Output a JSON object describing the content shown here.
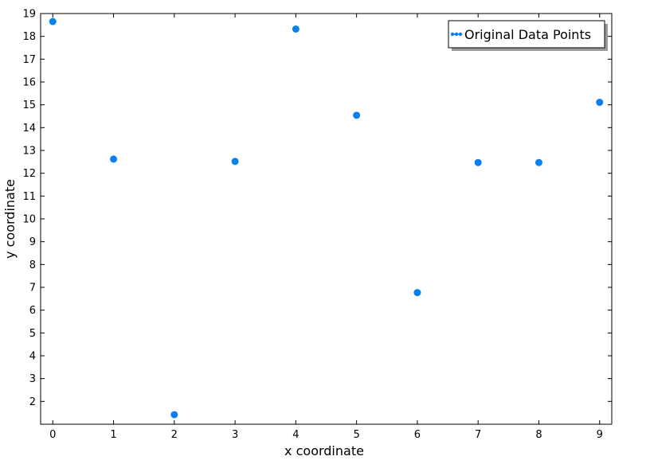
{
  "chart_data": {
    "type": "scatter",
    "title": "",
    "xlabel": "x coordinate",
    "ylabel": "y coordinate",
    "xlim": [
      -0.2,
      9.2
    ],
    "ylim": [
      1.0,
      19.0
    ],
    "x_ticks": [
      0,
      1,
      2,
      3,
      4,
      5,
      6,
      7,
      8,
      9
    ],
    "y_ticks": [
      2,
      3,
      4,
      5,
      6,
      7,
      8,
      9,
      10,
      11,
      12,
      13,
      14,
      15,
      16,
      17,
      18,
      19
    ],
    "grid": false,
    "legend_position": "top-right",
    "series": [
      {
        "name": "Original Data Points",
        "color": "#0a7ff0",
        "marker": "circle",
        "x": [
          0,
          1,
          2,
          3,
          4,
          5,
          6,
          7,
          8,
          9
        ],
        "y": [
          18.65,
          12.62,
          1.42,
          12.52,
          18.32,
          14.54,
          6.77,
          12.47,
          12.47,
          15.11
        ]
      }
    ]
  }
}
